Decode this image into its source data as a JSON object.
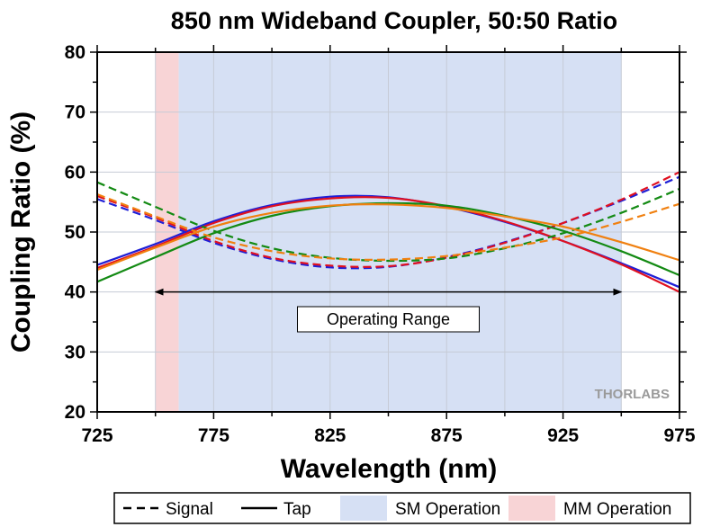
{
  "chart_data": {
    "type": "line",
    "title": "850 nm Wideband Coupler, 50:50 Ratio",
    "xlabel": "Wavelength (nm)",
    "ylabel": "Coupling Ratio (%)",
    "xlim": [
      725,
      975
    ],
    "ylim": [
      20,
      80
    ],
    "xticks": [
      725,
      775,
      825,
      875,
      925,
      975
    ],
    "yticks": [
      20,
      30,
      40,
      50,
      60,
      70,
      80
    ],
    "grid": true,
    "bands": [
      {
        "name": "MM Operation",
        "x": [
          750,
          760
        ],
        "color": "#f8d4d6"
      },
      {
        "name": "SM Operation",
        "x": [
          760,
          950
        ],
        "color": "#d6e0f4"
      }
    ],
    "annotation": {
      "text": "Operating Range",
      "x_start": 750,
      "x_end": 950,
      "y": 40
    },
    "legend": {
      "position": "bottom",
      "items": [
        {
          "label": "Signal",
          "kind": "dashed"
        },
        {
          "label": "Tap",
          "kind": "solid"
        },
        {
          "label": "SM Operation",
          "kind": "band",
          "color": "#d6e0f4"
        },
        {
          "label": "MM Operation",
          "kind": "band",
          "color": "#f8d4d6"
        }
      ]
    },
    "series": [
      {
        "color": "#1f1fd6",
        "style": "solid",
        "x": [
          725,
          750,
          775,
          800,
          825,
          850,
          875,
          900,
          925,
          950,
          975
        ],
        "y": [
          44.5,
          48.0,
          51.8,
          54.5,
          55.9,
          55.8,
          54.2,
          51.7,
          48.5,
          44.8,
          40.8
        ]
      },
      {
        "color": "#1f1fd6",
        "style": "dashed",
        "x": [
          725,
          750,
          775,
          800,
          825,
          850,
          875,
          900,
          925,
          950,
          975
        ],
        "y": [
          55.5,
          52.0,
          48.2,
          45.5,
          44.1,
          44.2,
          45.8,
          48.3,
          51.5,
          55.2,
          59.2
        ]
      },
      {
        "color": "#e01020",
        "style": "solid",
        "x": [
          725,
          750,
          775,
          800,
          825,
          850,
          875,
          900,
          925,
          950,
          975
        ],
        "y": [
          44.0,
          47.6,
          51.5,
          54.3,
          55.6,
          55.7,
          54.3,
          51.8,
          48.5,
          44.6,
          40.0
        ]
      },
      {
        "color": "#e01020",
        "style": "dashed",
        "x": [
          725,
          750,
          775,
          800,
          825,
          850,
          875,
          900,
          925,
          950,
          975
        ],
        "y": [
          56.0,
          52.4,
          48.5,
          45.7,
          44.4,
          44.3,
          45.7,
          48.2,
          51.5,
          55.4,
          60.0
        ]
      },
      {
        "color": "#138a13",
        "style": "solid",
        "x": [
          725,
          750,
          775,
          800,
          825,
          850,
          875,
          900,
          925,
          950,
          975
        ],
        "y": [
          41.7,
          45.8,
          49.8,
          52.7,
          54.3,
          54.8,
          54.4,
          52.7,
          50.2,
          46.8,
          42.8
        ]
      },
      {
        "color": "#138a13",
        "style": "dashed",
        "x": [
          725,
          750,
          775,
          800,
          825,
          850,
          875,
          900,
          925,
          950,
          975
        ],
        "y": [
          58.3,
          54.2,
          50.2,
          47.3,
          45.7,
          45.2,
          45.6,
          47.3,
          49.8,
          53.2,
          57.2
        ]
      },
      {
        "color": "#f08010",
        "style": "solid",
        "x": [
          725,
          750,
          775,
          800,
          825,
          850,
          875,
          900,
          925,
          950,
          975
        ],
        "y": [
          43.7,
          47.4,
          50.9,
          53.2,
          54.4,
          54.6,
          54.0,
          52.6,
          50.9,
          48.3,
          45.3
        ]
      },
      {
        "color": "#f08010",
        "style": "dashed",
        "x": [
          725,
          750,
          775,
          800,
          825,
          850,
          875,
          900,
          925,
          950,
          975
        ],
        "y": [
          56.3,
          52.6,
          49.1,
          46.8,
          45.6,
          45.4,
          46.0,
          47.4,
          49.1,
          51.7,
          54.7
        ]
      }
    ]
  },
  "watermark": {
    "text": "THORLABS"
  }
}
